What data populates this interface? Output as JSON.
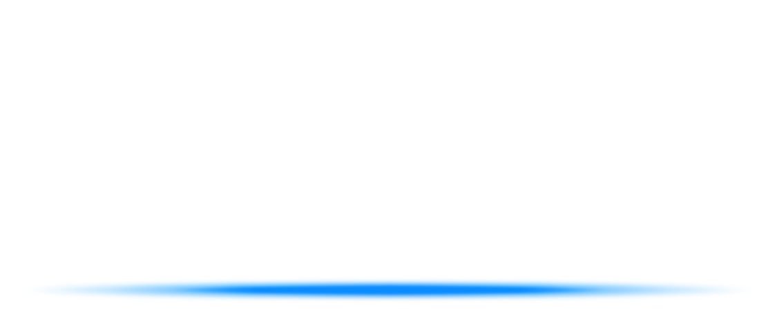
{
  "decoration": {
    "name": "blue-glow-line",
    "colors": {
      "background": "#ffffff",
      "core": "#0a8cff",
      "mid": "#3fb0ff",
      "edge": "#bfe4ff"
    }
  }
}
